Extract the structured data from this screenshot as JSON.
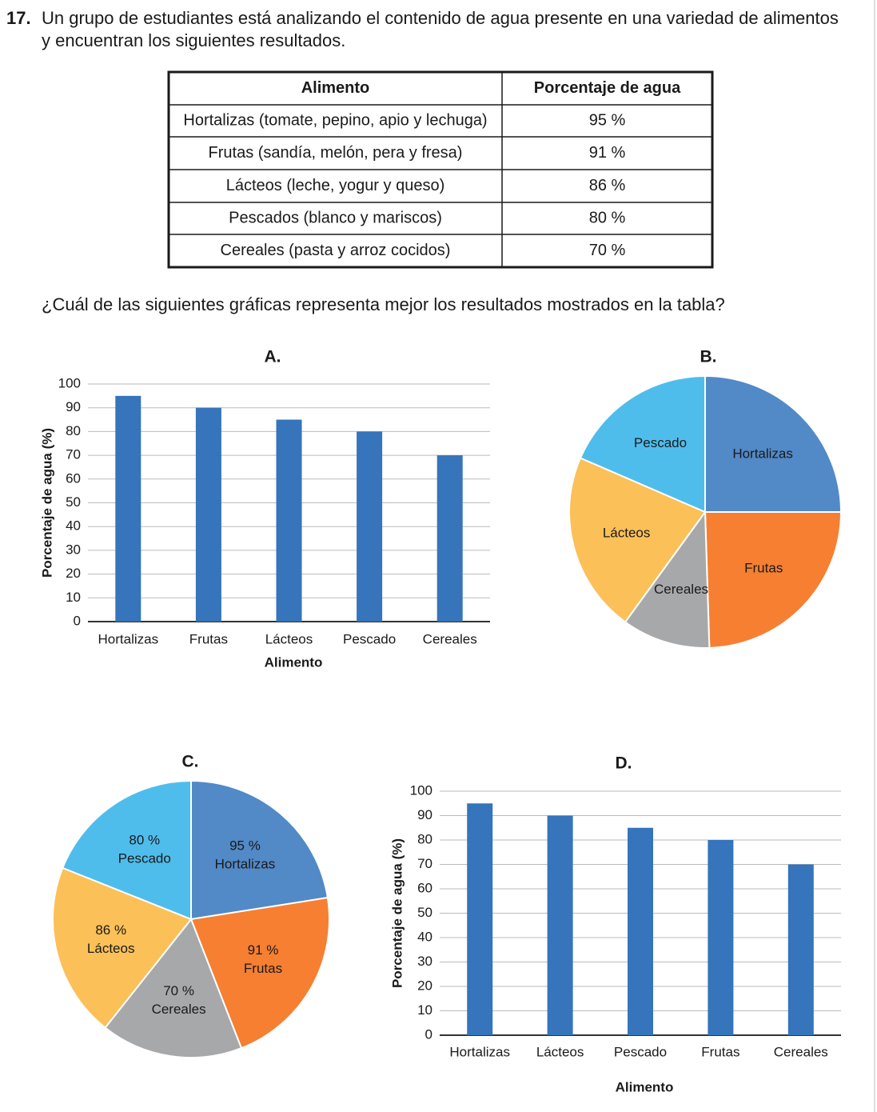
{
  "question": {
    "number": "17.",
    "lines": [
      "Un grupo de estudiantes está analizando el contenido de agua presente en una variedad de alimentos",
      "y encuentran los siguientes resultados."
    ]
  },
  "table": {
    "header": [
      "Alimento",
      "Porcentaje de agua"
    ],
    "rows": [
      [
        "Hortalizas (tomate, pepino, apio y lechuga)",
        "95 %"
      ],
      [
        "Frutas (sandía, melón, pera y fresa)",
        "91 %"
      ],
      [
        "Lácteos (leche, yogur y queso)",
        "86 %"
      ],
      [
        "Pescados (blanco y mariscos)",
        "80 %"
      ],
      [
        "Cereales (pasta y arroz cocidos)",
        "70 %"
      ]
    ]
  },
  "prompt": "¿Cuál de las siguientes gráficas representa mejor los resultados mostrados en la tabla?",
  "chart_data": [
    {
      "type": "bar",
      "title": "A.",
      "x_label": "Alimento",
      "y_label": "Porcentaje de agua (%)",
      "categories": [
        "Hortalizas",
        "Frutas",
        "Lácteos",
        "Pescado",
        "Cereales"
      ],
      "values": [
        95,
        90,
        85,
        80,
        70
      ],
      "color": "#3674bb",
      "ylim": [
        0,
        100
      ],
      "yticks": [
        0,
        10,
        20,
        30,
        40,
        50,
        60,
        70,
        80,
        90,
        100
      ],
      "grid": true
    },
    {
      "type": "pie",
      "title": "B.",
      "categories": [
        "Hortalizas",
        "Frutas",
        "Cereales",
        "Lácteos",
        "Pescado"
      ],
      "values": [
        25,
        24.5,
        10.5,
        21.5,
        18.5
      ],
      "colors": [
        "#5289c7",
        "#f67f32",
        "#a7a8aa",
        "#fbc058",
        "#4fbdec"
      ]
    },
    {
      "type": "pie",
      "title": "C.",
      "categories": [
        "Hortalizas",
        "Frutas",
        "Cereales",
        "Lácteos",
        "Pescado"
      ],
      "values": [
        95,
        91,
        70,
        86,
        80
      ],
      "value_labels": [
        "95 %",
        "91 %",
        "70 %",
        "86 %",
        "80 %"
      ],
      "colors": [
        "#5289c7",
        "#f67f32",
        "#a7a8aa",
        "#fbc058",
        "#4fbdec"
      ]
    },
    {
      "type": "bar",
      "title": "D.",
      "x_label": "Alimento",
      "y_label": "Porcentaje de agua (%)",
      "categories": [
        "Hortalizas",
        "Lácteos",
        "Pescado",
        "Frutas",
        "Cereales"
      ],
      "values": [
        95,
        90,
        85,
        80,
        70
      ],
      "color": "#3674bb",
      "ylim": [
        0,
        100
      ],
      "yticks": [
        0,
        10,
        20,
        30,
        40,
        50,
        60,
        70,
        80,
        90,
        100
      ],
      "grid": true
    }
  ]
}
